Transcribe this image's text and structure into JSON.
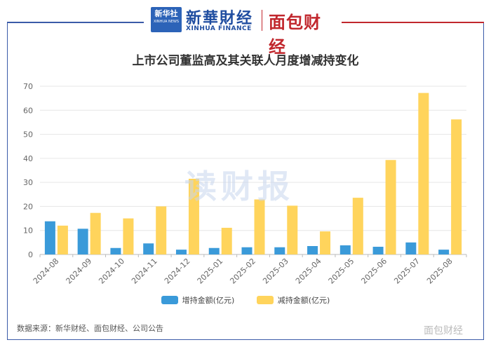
{
  "header": {
    "xinhua_emblem_top": "新华社",
    "xinhua_emblem_bottom": "XINHUA NEWS",
    "xinhua_cn": "新華財经",
    "xinhua_en": "XINHUA FINANCE",
    "mianbao_logo": "面包财经"
  },
  "watermark": "读财报",
  "source_note": "数据来源：新华财经、面包财经、公司公告",
  "corner_watermark": "面包财经",
  "colors": {
    "increase": "#3a9ad9",
    "decrease": "#ffd45c",
    "frame_blue": "#3b5ba8",
    "frame_red": "#c1272d"
  },
  "chart_data": {
    "type": "bar",
    "title": "上市公司董监高及其关联人月度增减持变化",
    "xlabel": "",
    "ylabel": "",
    "ylim": [
      0,
      70
    ],
    "yticks": [
      0,
      10,
      20,
      30,
      40,
      50,
      60,
      70
    ],
    "grid": true,
    "legend_position": "bottom",
    "categories": [
      "2024-08",
      "2024-09",
      "2024-10",
      "2024-11",
      "2024-12",
      "2025-01",
      "2025-02",
      "2025-03",
      "2025-04",
      "2025-05",
      "2025-06",
      "2025-07",
      "2025-08"
    ],
    "series": [
      {
        "name": "增持金额(亿元)",
        "values": [
          13.8,
          10.7,
          2.7,
          4.6,
          2.0,
          2.7,
          3.0,
          3.0,
          3.5,
          3.8,
          3.2,
          5.0,
          2.0
        ]
      },
      {
        "name": "减持金额(亿元)",
        "values": [
          12.0,
          17.3,
          15.0,
          20.0,
          31.5,
          11.1,
          22.9,
          20.3,
          9.6,
          23.6,
          39.3,
          67.2,
          56.2
        ]
      }
    ]
  }
}
